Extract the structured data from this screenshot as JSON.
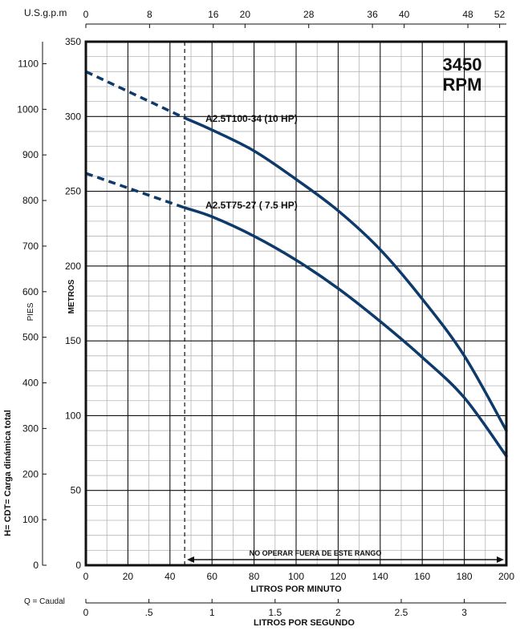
{
  "chart_data": {
    "type": "line",
    "rpm_badge": [
      "3450",
      "RPM"
    ],
    "axes": {
      "x_bottom": {
        "label": "LITROS POR MINUTO",
        "range": [
          0,
          200
        ],
        "ticks": [
          "0",
          "20",
          "40",
          "60",
          "80",
          "100",
          "120",
          "140",
          "160",
          "180",
          "200"
        ]
      },
      "x_top": {
        "label": "U.S.g.p.m",
        "ticks": [
          {
            "label": "0",
            "lpm": 0
          },
          {
            "label": "8",
            "lpm": 30.3
          },
          {
            "label": "16",
            "lpm": 60.6
          },
          {
            "label": "20",
            "lpm": 75.7
          },
          {
            "label": "28",
            "lpm": 106
          },
          {
            "label": "36",
            "lpm": 136.3
          },
          {
            "label": "40",
            "lpm": 151.4
          },
          {
            "label": "48",
            "lpm": 181.7
          },
          {
            "label": "52",
            "lpm": 196.8
          }
        ]
      },
      "x_lps": {
        "label": "LITROS POR SEGUNDO",
        "caudal_label": "Q = Caudal",
        "ticks": [
          {
            "label": "0",
            "lpm": 0
          },
          {
            "label": ".5",
            "lpm": 30
          },
          {
            "label": "1",
            "lpm": 60
          },
          {
            "label": "1.5",
            "lpm": 90
          },
          {
            "label": "2",
            "lpm": 120
          },
          {
            "label": "2.5",
            "lpm": 150
          },
          {
            "label": "3",
            "lpm": 180
          }
        ]
      },
      "y_metros": {
        "label": "METROS",
        "range": [
          0,
          350
        ],
        "ticks": [
          "0",
          "50",
          "100",
          "150",
          "200",
          "250",
          "300",
          "350"
        ]
      },
      "y_pies": {
        "label": "PIES",
        "ticks": [
          "0",
          "100",
          "200",
          "300",
          "400",
          "500",
          "600",
          "700",
          "800",
          "900",
          "1000",
          "1100"
        ]
      },
      "y_title": "H= CDT= Carga dinámica total"
    },
    "operating_limit_lpm": 47,
    "range_note": "NO OPERAR FUERA DE ESTE RANGO",
    "series": [
      {
        "name": "A2.5T100-34 (10 HP)",
        "color": "#0d3a6a",
        "dashed": {
          "x": [
            0,
            47
          ],
          "y": [
            330,
            299
          ]
        },
        "solid": {
          "x": [
            47,
            60,
            80,
            100,
            120,
            140,
            160,
            180,
            200
          ],
          "y": [
            299,
            291,
            277,
            258,
            237,
            211,
            178,
            140,
            90
          ]
        }
      },
      {
        "name": "A2.5T75-27 ( 7.5 HP)",
        "color": "#0d3a6a",
        "dashed": {
          "x": [
            0,
            47
          ],
          "y": [
            262,
            239
          ]
        },
        "solid": {
          "x": [
            47,
            60,
            80,
            100,
            120,
            140,
            160,
            180,
            200
          ],
          "y": [
            239,
            233,
            220,
            204,
            185,
            163,
            139,
            112,
            73
          ]
        }
      }
    ]
  }
}
